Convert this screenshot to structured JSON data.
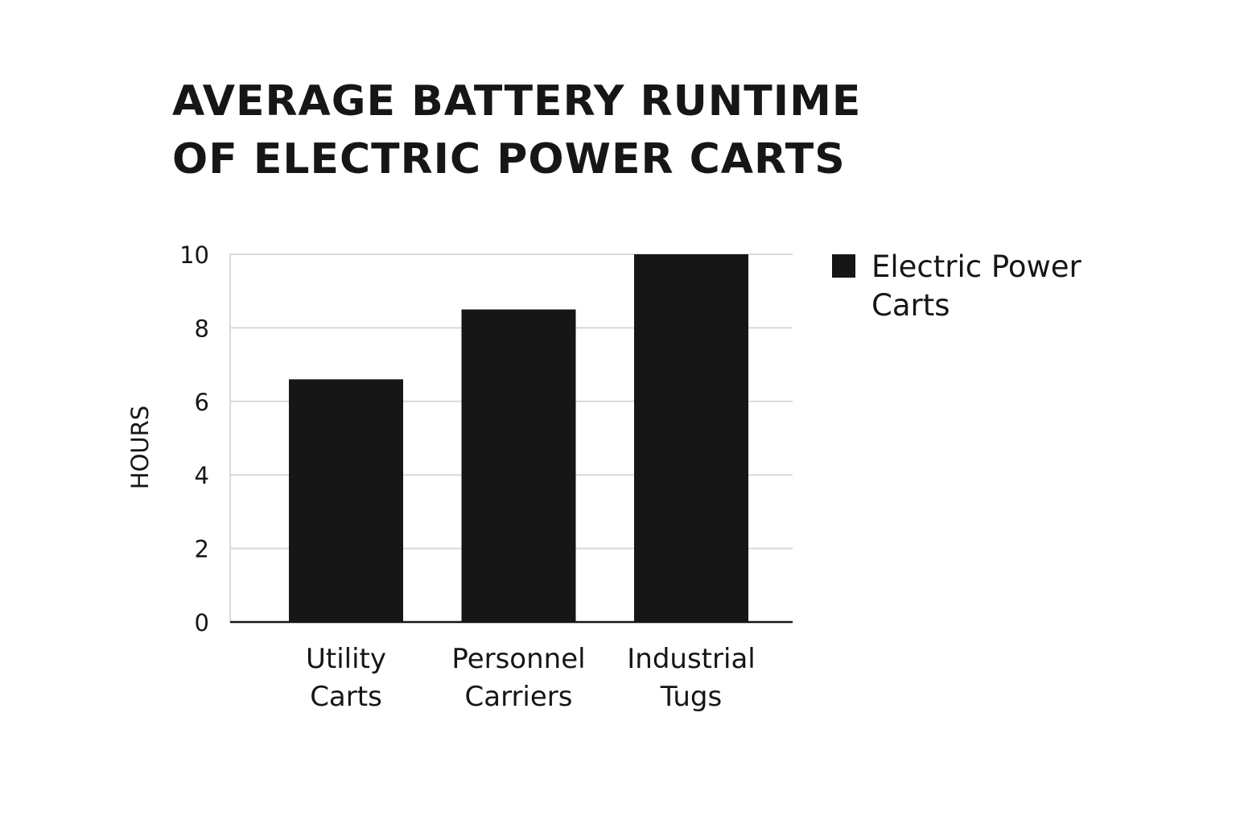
{
  "colors": {
    "bar": "#161616",
    "grid": "#d9d9d9",
    "axis": "#161616",
    "text": "#161616"
  },
  "chart_data": {
    "type": "bar",
    "title_lines": [
      "AVERAGE BATTERY RUNTIME",
      "OF ELECTRIC POWER CARTS"
    ],
    "categories": [
      [
        "Utility",
        "Carts"
      ],
      [
        "Personnel",
        "Carriers"
      ],
      [
        "Industrial",
        "Tugs"
      ]
    ],
    "series": [
      {
        "name": "Electric Power Carts",
        "values": [
          6.6,
          8.5,
          10
        ]
      }
    ],
    "ylabel": "HOURS",
    "xlabel": "",
    "ylim": [
      0,
      10
    ],
    "yticks": [
      0,
      2,
      4,
      6,
      8,
      10
    ],
    "grid": true,
    "legend_position": "right"
  }
}
